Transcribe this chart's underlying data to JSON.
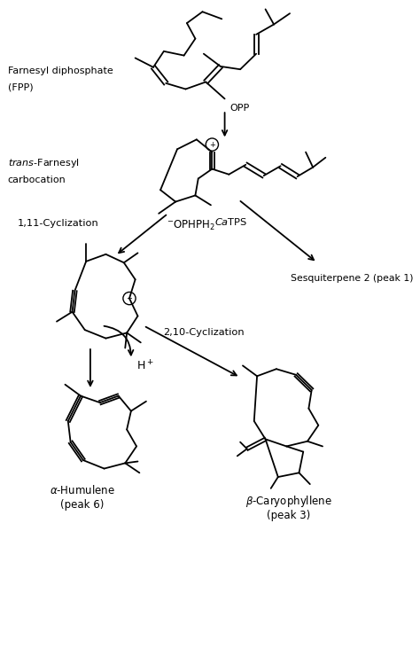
{
  "background_color": "#ffffff",
  "line_color": "#000000",
  "figsize": [
    4.74,
    7.49
  ],
  "dpi": 100,
  "lw": 1.3,
  "labels": {
    "fpp_line1": "Farnesyl diphosphate",
    "fpp_line2": "(FPP)",
    "opp": "OPP",
    "trans1": "trans-Farnesyl",
    "trans2": "carbocation",
    "ophph2": "−OPHPH₂",
    "cycliz_1_11": "1,11-Cyclization",
    "catps": "CaTPS",
    "sesqui": "Sesquiterpene 2 (peak 1)",
    "cycliz_2_10": "2,10-Cyclization",
    "hplus": "H⁺",
    "alpha1": "α-Humulene",
    "alpha2": "(peak 6)",
    "beta1": "β-Caryophyllene",
    "beta2": "(peak 3)"
  },
  "coords": {
    "xlim": [
      0,
      10
    ],
    "ylim": [
      0,
      15.8
    ]
  }
}
